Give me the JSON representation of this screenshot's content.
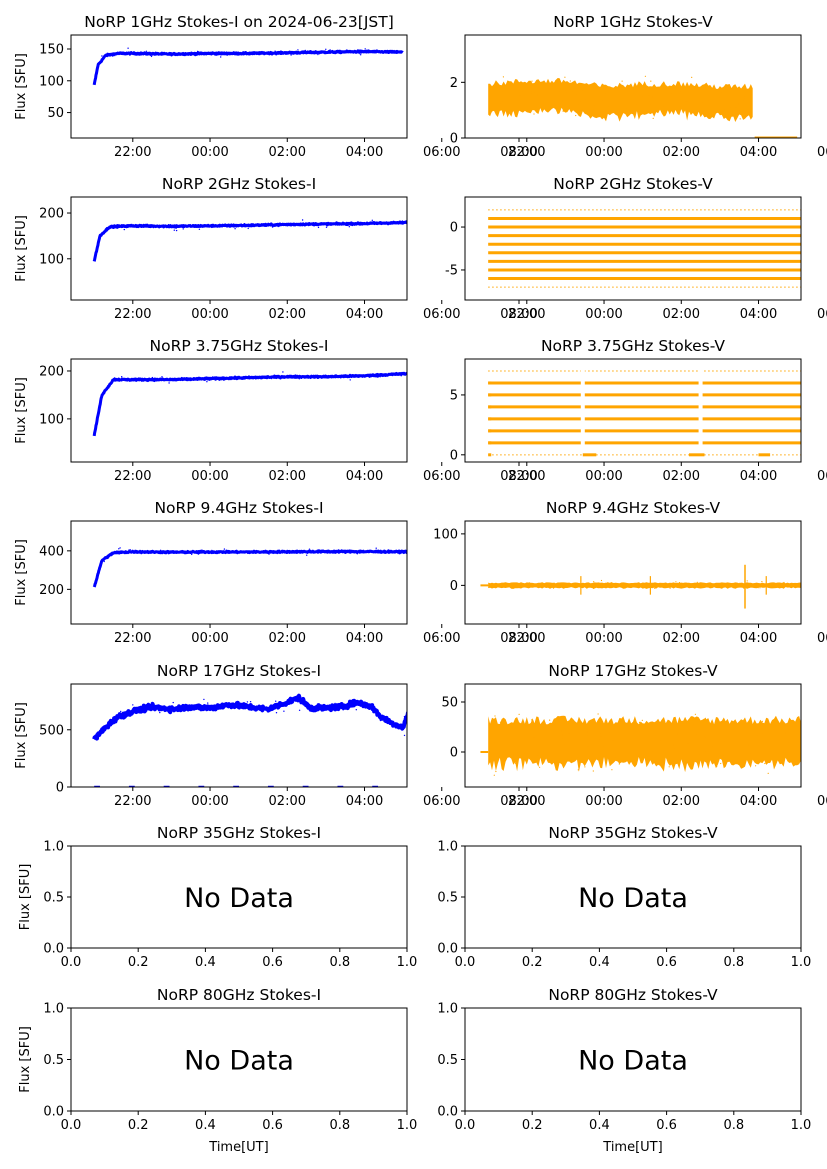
{
  "colors": {
    "stokes_i": "#0000ff",
    "stokes_v": "#ffa500"
  },
  "chart_data": [
    {
      "type": "scatter",
      "title": "NoRP 1GHz Stokes-I on 2024-06-23[JST]",
      "ylabel": "Flux [SFU]",
      "xlabel": "",
      "x_ticks": [
        "22:00",
        "00:00",
        "02:00",
        "04:00",
        "06:00",
        "08:00"
      ],
      "y_ticks": [
        50,
        100,
        150
      ],
      "ylim": [
        10,
        172
      ],
      "xlim_hours": [
        20.4,
        29.1
      ],
      "series": [
        {
          "color": "#0000ff",
          "x_hours": [
            21.0,
            21.1,
            21.3,
            21.6,
            22.0,
            23.0,
            24.0,
            25.0,
            26.0,
            27.0,
            28.0,
            29.0
          ],
          "y": [
            93,
            125,
            140,
            143,
            143,
            142,
            143,
            143,
            144,
            145,
            146,
            145
          ]
        }
      ]
    },
    {
      "type": "scatter",
      "title": "NoRP 1GHz Stokes-V",
      "ylabel": "",
      "xlabel": "",
      "x_ticks": [
        "22:00",
        "00:00",
        "02:00",
        "04:00",
        "06:00",
        "08:00"
      ],
      "y_ticks": [
        0,
        2
      ],
      "ylim": [
        0,
        3.7
      ],
      "xlim_hours": [
        20.4,
        29.1
      ],
      "series": [
        {
          "color": "#ffa500",
          "x_hours": [
            21.0,
            22.0,
            23.0,
            24.0,
            25.0,
            26.0,
            27.0,
            28.0,
            29.0
          ],
          "y": [
            1.4,
            1.5,
            1.5,
            1.3,
            1.4,
            1.4,
            1.3,
            1.3,
            1.4
          ]
        }
      ]
    },
    {
      "type": "scatter",
      "title": "NoRP 2GHz Stokes-I",
      "ylabel": "Flux [SFU]",
      "xlabel": "",
      "x_ticks": [
        "22:00",
        "00:00",
        "02:00",
        "04:00",
        "06:00",
        "08:00"
      ],
      "y_ticks": [
        100,
        200
      ],
      "ylim": [
        10,
        235
      ],
      "xlim_hours": [
        20.4,
        29.1
      ],
      "series": [
        {
          "color": "#0000ff",
          "x_hours": [
            21.0,
            21.15,
            21.4,
            22.0,
            23.0,
            24.0,
            25.0,
            26.0,
            27.0,
            28.0,
            29.0,
            29.2
          ],
          "y": [
            95,
            150,
            170,
            172,
            171,
            172,
            173,
            175,
            176,
            177,
            179,
            180
          ]
        }
      ]
    },
    {
      "type": "scatter",
      "title": "NoRP 2GHz Stokes-V",
      "ylabel": "",
      "xlabel": "",
      "x_ticks": [
        "22:00",
        "00:00",
        "02:00",
        "04:00",
        "06:00",
        "08:00"
      ],
      "y_ticks": [
        -5,
        0
      ],
      "ylim": [
        -8.5,
        3.5
      ],
      "xlim_hours": [
        20.4,
        29.1
      ],
      "series": [
        {
          "color": "#ffa500",
          "levels": [
            2.0,
            1.0,
            0.0,
            -1.0,
            -2.0,
            -3.0,
            -4.0,
            -5.0,
            -6.0,
            -7.0
          ]
        }
      ]
    },
    {
      "type": "scatter",
      "title": "NoRP 3.75GHz Stokes-I",
      "ylabel": "Flux [SFU]",
      "xlabel": "",
      "x_ticks": [
        "22:00",
        "00:00",
        "02:00",
        "04:00",
        "06:00",
        "08:00"
      ],
      "y_ticks": [
        100,
        200
      ],
      "ylim": [
        10,
        225
      ],
      "xlim_hours": [
        20.4,
        29.1
      ],
      "series": [
        {
          "color": "#0000ff",
          "x_hours": [
            21.0,
            21.2,
            21.5,
            22.0,
            23.0,
            24.0,
            25.0,
            26.0,
            27.0,
            28.0,
            29.0,
            29.2
          ],
          "y": [
            65,
            150,
            182,
            182,
            182,
            184,
            186,
            188,
            188,
            190,
            194,
            195
          ]
        }
      ]
    },
    {
      "type": "scatter",
      "title": "NoRP 3.75GHz Stokes-V",
      "ylabel": "",
      "xlabel": "",
      "x_ticks": [
        "22:00",
        "00:00",
        "02:00",
        "04:00",
        "06:00",
        "08:00"
      ],
      "y_ticks": [
        0,
        5
      ],
      "ylim": [
        -0.6,
        8.0
      ],
      "xlim_hours": [
        20.4,
        29.1
      ],
      "series": [
        {
          "color": "#ffa500",
          "levels": [
            0.0,
            1.0,
            2.0,
            3.0,
            4.0,
            5.0,
            6.0,
            7.0
          ]
        }
      ]
    },
    {
      "type": "scatter",
      "title": "NoRP 9.4GHz Stokes-I",
      "ylabel": "Flux [SFU]",
      "xlabel": "",
      "x_ticks": [
        "22:00",
        "00:00",
        "02:00",
        "04:00",
        "06:00",
        "08:00"
      ],
      "y_ticks": [
        200,
        400
      ],
      "ylim": [
        20,
        555
      ],
      "xlim_hours": [
        20.4,
        29.1
      ],
      "series": [
        {
          "color": "#0000ff",
          "x_hours": [
            21.0,
            21.2,
            21.5,
            22.0,
            23.0,
            24.0,
            25.0,
            26.0,
            27.0,
            28.0,
            29.0,
            29.2
          ],
          "y": [
            210,
            350,
            390,
            395,
            393,
            394,
            394,
            395,
            396,
            396,
            395,
            398
          ]
        }
      ]
    },
    {
      "type": "scatter",
      "title": "NoRP 9.4GHz Stokes-V",
      "ylabel": "",
      "xlabel": "",
      "x_ticks": [
        "22:00",
        "00:00",
        "02:00",
        "04:00",
        "06:00",
        "08:00"
      ],
      "y_ticks": [
        0,
        100
      ],
      "ylim": [
        -75,
        125
      ],
      "xlim_hours": [
        20.4,
        29.1
      ],
      "series": [
        {
          "color": "#ffa500",
          "x_hours": [
            21.0,
            22.0,
            23.0,
            24.0,
            25.0,
            26.0,
            27.0,
            28.0,
            29.0
          ],
          "y": [
            0,
            0,
            0,
            0,
            0,
            0,
            0,
            0,
            0
          ]
        }
      ]
    },
    {
      "type": "scatter",
      "title": "NoRP 17GHz Stokes-I",
      "ylabel": "Flux [SFU]",
      "xlabel": "",
      "x_ticks": [
        "22:00",
        "00:00",
        "02:00",
        "04:00",
        "06:00",
        "08:00"
      ],
      "y_ticks": [
        0,
        500
      ],
      "ylim": [
        0,
        900
      ],
      "xlim_hours": [
        20.4,
        29.1
      ],
      "series": [
        {
          "color": "#0000ff",
          "x_hours": [
            21.0,
            21.3,
            21.6,
            22.0,
            22.5,
            23.0,
            23.5,
            24.0,
            24.5,
            25.0,
            25.5,
            26.0,
            26.3,
            26.6,
            27.0,
            27.4,
            27.8,
            28.2,
            28.4,
            28.7,
            29.0,
            29.2
          ],
          "y": [
            420,
            520,
            610,
            660,
            700,
            680,
            700,
            690,
            720,
            700,
            680,
            740,
            780,
            690,
            690,
            700,
            740,
            700,
            620,
            560,
            520,
            720
          ]
        }
      ]
    },
    {
      "type": "scatter",
      "title": "NoRP 17GHz Stokes-V",
      "ylabel": "",
      "xlabel": "",
      "x_ticks": [
        "22:00",
        "00:00",
        "02:00",
        "04:00",
        "06:00",
        "08:00"
      ],
      "y_ticks": [
        0,
        50
      ],
      "ylim": [
        -35,
        68
      ],
      "xlim_hours": [
        20.4,
        29.1
      ],
      "series": [
        {
          "color": "#ffa500",
          "x_hours": [
            21.0,
            22.0,
            23.0,
            24.0,
            25.0,
            26.0,
            27.0,
            28.0,
            29.0
          ],
          "y": [
            10,
            10,
            10,
            10,
            10,
            10,
            10,
            10,
            10
          ]
        }
      ]
    },
    {
      "type": "scatter",
      "title": "NoRP 35GHz Stokes-I",
      "ylabel": "Flux [SFU]",
      "xlabel": "",
      "message": "No Data",
      "x_ticks": [
        "0.0",
        "0.2",
        "0.4",
        "0.6",
        "0.8",
        "1.0"
      ],
      "y_ticks": [
        "0.0",
        "0.5",
        "1.0"
      ],
      "xlim": [
        0,
        1
      ],
      "ylim": [
        0,
        1
      ],
      "series": []
    },
    {
      "type": "scatter",
      "title": "NoRP 35GHz Stokes-V",
      "ylabel": "",
      "xlabel": "",
      "message": "No Data",
      "x_ticks": [
        "0.0",
        "0.2",
        "0.4",
        "0.6",
        "0.8",
        "1.0"
      ],
      "y_ticks": [
        "0.0",
        "0.5",
        "1.0"
      ],
      "xlim": [
        0,
        1
      ],
      "ylim": [
        0,
        1
      ],
      "series": []
    },
    {
      "type": "scatter",
      "title": "NoRP 80GHz Stokes-I",
      "ylabel": "Flux [SFU]",
      "xlabel": "Time[UT]",
      "message": "No Data",
      "x_ticks": [
        "0.0",
        "0.2",
        "0.4",
        "0.6",
        "0.8",
        "1.0"
      ],
      "y_ticks": [
        "0.0",
        "0.5",
        "1.0"
      ],
      "xlim": [
        0,
        1
      ],
      "ylim": [
        0,
        1
      ],
      "series": []
    },
    {
      "type": "scatter",
      "title": "NoRP 80GHz Stokes-V",
      "ylabel": "",
      "xlabel": "Time[UT]",
      "message": "No Data",
      "x_ticks": [
        "0.0",
        "0.2",
        "0.4",
        "0.6",
        "0.8",
        "1.0"
      ],
      "y_ticks": [
        "0.0",
        "0.5",
        "1.0"
      ],
      "xlim": [
        0,
        1
      ],
      "ylim": [
        0,
        1
      ],
      "series": []
    }
  ]
}
